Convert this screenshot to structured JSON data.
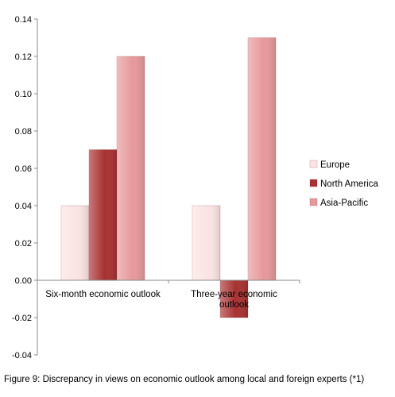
{
  "caption": "Figure 9: Discrepancy in views on economic outlook among local and foreign experts (*1)",
  "chart_data": {
    "type": "bar",
    "categories": [
      "Six-month economic outlook",
      "Three-year economic outlook"
    ],
    "category_label_lines": [
      [
        "Six-month economic outlook"
      ],
      [
        "Three-year economic",
        "outlook"
      ]
    ],
    "series": [
      {
        "name": "Europe",
        "values": [
          0.04,
          0.04
        ],
        "color": "#fbe3e3"
      },
      {
        "name": "North America",
        "values": [
          0.07,
          -0.02
        ],
        "color": "#a83232"
      },
      {
        "name": "Asia-Pacific",
        "values": [
          0.12,
          0.13
        ],
        "color": "#e6999b"
      }
    ],
    "ylim": [
      -0.04,
      0.14
    ],
    "yticks": [
      "-0.04",
      "-0.02",
      "0.00",
      "0.02",
      "0.04",
      "0.06",
      "0.08",
      "0.10",
      "0.12",
      "0.14"
    ],
    "title": "",
    "xlabel": "",
    "ylabel": "",
    "grid": false,
    "legend_position": "right"
  }
}
